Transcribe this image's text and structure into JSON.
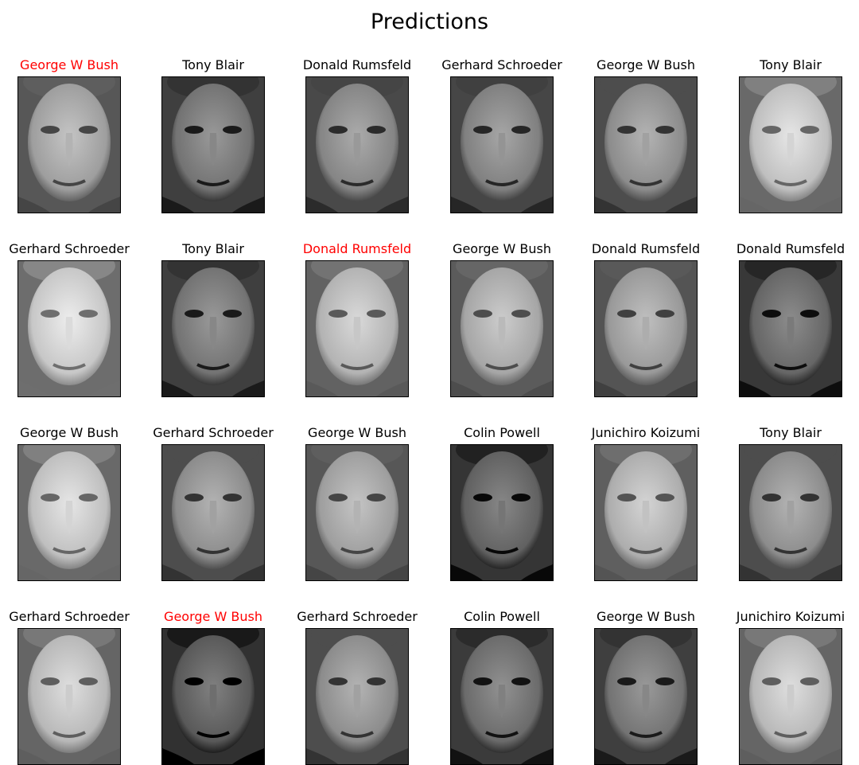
{
  "title": "Predictions",
  "colors": {
    "correct": "#000000",
    "incorrect": "#ff0000"
  },
  "faces": [
    {
      "label": "George W Bush",
      "incorrect": true,
      "shade": 0.62
    },
    {
      "label": "Tony Blair",
      "incorrect": false,
      "shade": 0.45
    },
    {
      "label": "Donald Rumsfeld",
      "incorrect": false,
      "shade": 0.52
    },
    {
      "label": "Gerhard Schroeder",
      "incorrect": false,
      "shade": 0.5
    },
    {
      "label": "George W Bush",
      "incorrect": false,
      "shade": 0.55
    },
    {
      "label": "Tony Blair",
      "incorrect": false,
      "shade": 0.75
    },
    {
      "label": "Gerhard Schroeder",
      "incorrect": false,
      "shade": 0.78
    },
    {
      "label": "Tony Blair",
      "incorrect": false,
      "shade": 0.45
    },
    {
      "label": "Donald Rumsfeld",
      "incorrect": true,
      "shade": 0.7
    },
    {
      "label": "George W Bush",
      "incorrect": false,
      "shade": 0.65
    },
    {
      "label": "Donald Rumsfeld",
      "incorrect": false,
      "shade": 0.6
    },
    {
      "label": "Donald Rumsfeld",
      "incorrect": false,
      "shade": 0.4
    },
    {
      "label": "George W Bush",
      "incorrect": false,
      "shade": 0.75
    },
    {
      "label": "Gerhard Schroeder",
      "incorrect": false,
      "shade": 0.55
    },
    {
      "label": "George W Bush",
      "incorrect": false,
      "shade": 0.62
    },
    {
      "label": "Colin Powell",
      "incorrect": false,
      "shade": 0.38
    },
    {
      "label": "Junichiro Koizumi",
      "incorrect": false,
      "shade": 0.68
    },
    {
      "label": "Tony Blair",
      "incorrect": false,
      "shade": 0.55
    },
    {
      "label": "Gerhard Schroeder",
      "incorrect": false,
      "shade": 0.72
    },
    {
      "label": "George W Bush",
      "incorrect": true,
      "shade": 0.35
    },
    {
      "label": "Gerhard Schroeder",
      "incorrect": false,
      "shade": 0.55
    },
    {
      "label": "Colin Powell",
      "incorrect": false,
      "shade": 0.42
    },
    {
      "label": "George W Bush",
      "incorrect": false,
      "shade": 0.45
    },
    {
      "label": "Junichiro Koizumi",
      "incorrect": false,
      "shade": 0.72
    }
  ]
}
